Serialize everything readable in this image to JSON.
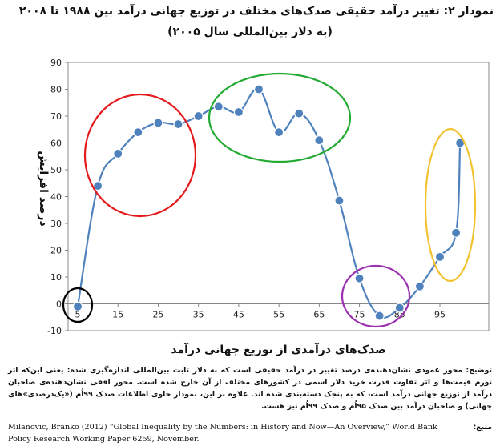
{
  "chart_data": {
    "type": "line",
    "title": "نمودار ۲: تغییر درآمد حقیقی صدک‌های مختلف در توزیع جهانی درآمد بین ۱۹۸۸ تا ۲۰۰۸",
    "subtitle": "(به دلار بین‌المللی سال ۲۰۰۵)",
    "xlabel": "صدک‌های درآمدی از توزیع جهانی درآمد",
    "ylabel": "درصد افزایش",
    "xlim": [
      5,
      100
    ],
    "ylim": [
      -10,
      90
    ],
    "x_ticks": [
      5,
      15,
      25,
      35,
      45,
      55,
      65,
      75,
      85,
      95
    ],
    "y_ticks": [
      -10,
      0,
      10,
      20,
      30,
      40,
      50,
      60,
      70,
      80,
      90
    ],
    "grid": false,
    "series": [
      {
        "x": [
          5,
          10,
          15,
          20,
          25,
          30,
          35,
          40,
          45,
          50,
          55,
          60,
          65,
          70,
          75,
          80,
          85,
          90,
          95,
          99,
          100
        ],
        "values": [
          -1,
          44,
          56,
          64,
          67.5,
          67,
          70,
          73.5,
          71.5,
          80,
          64,
          71,
          61,
          38.5,
          9.5,
          -4.5,
          -1.5,
          6.5,
          17.5,
          26.5,
          60
        ],
        "color": "#4f81bd"
      }
    ],
    "annotations": [
      {
        "shape": "ellipse",
        "color": "#000000",
        "around_x": [
          5
        ]
      },
      {
        "shape": "ellipse",
        "color": "#e41a1c",
        "around_x": [
          10,
          25
        ]
      },
      {
        "shape": "ellipse",
        "color": "#22aa33",
        "around_x": [
          35,
          65
        ]
      },
      {
        "shape": "ellipse",
        "color": "#9b30b0",
        "around_x": [
          75,
          90
        ]
      },
      {
        "shape": "ellipse",
        "color": "#f2c230",
        "around_x": [
          95,
          100
        ]
      }
    ]
  },
  "note": "توضیح: محور عمودی نشان‌دهنده‌ی درصد تغییر در درآمد حقیقی است که به دلار ثابت بین‌المللی اندازه‌گیری شده: یعنی این‌که اثر تورم قیمت‌ها و اثر تفاوت قدرت خرید دلار اسمی در کشورهای مختلف از آن خارج شده است. محور افقی نشان‌دهنده‌ی صاحبان درآمد از توزیع جهانی درآمد است، که به پنجک دسته‌بندی شده اند. علاوه بر این، نمودار حاوی اطلاعات صدک ۹۹اُم («یک‌درصدی‌»های جهانی) و صاحبان درآمد بین صدک ۹۵اُم و صدک ۹۹اُم نیز هست.",
  "source_label": "منبع:",
  "source_text": "Milanovic, Branko (2012) “Global Inequality by the Numbers: in History and Now—An Overview,” World Bank Policy Research Working Paper 6259, November."
}
